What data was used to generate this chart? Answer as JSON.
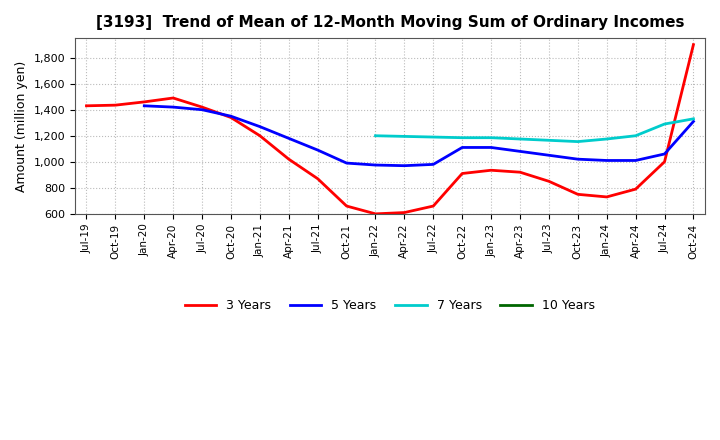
{
  "title": "[3193]  Trend of Mean of 12-Month Moving Sum of Ordinary Incomes",
  "ylabel": "Amount (million yen)",
  "background_color": "#ffffff",
  "grid_color": "#aaaaaa",
  "ylim": [
    600,
    1950
  ],
  "yticks": [
    600,
    800,
    1000,
    1200,
    1400,
    1600,
    1800
  ],
  "series": {
    "3 Years": {
      "color": "#ff0000",
      "dates": [
        "Jul-19",
        "Oct-19",
        "Jan-20",
        "Apr-20",
        "Jul-20",
        "Oct-20",
        "Jan-21",
        "Apr-21",
        "Jul-21",
        "Oct-21",
        "Jan-22",
        "Apr-22",
        "Jul-22",
        "Oct-22",
        "Jan-23",
        "Apr-23",
        "Jul-23",
        "Oct-23",
        "Jan-24",
        "Apr-24",
        "Jul-24",
        "Oct-24"
      ],
      "values": [
        1430,
        1435,
        1460,
        1490,
        1420,
        1340,
        1200,
        1020,
        870,
        660,
        600,
        610,
        660,
        910,
        935,
        920,
        850,
        750,
        730,
        790,
        1000,
        1900
      ]
    },
    "5 Years": {
      "color": "#0000ff",
      "dates": [
        "Jan-20",
        "Apr-20",
        "Jul-20",
        "Oct-20",
        "Jan-21",
        "Apr-21",
        "Jul-21",
        "Oct-21",
        "Jan-22",
        "Apr-22",
        "Jul-22",
        "Oct-22",
        "Jan-23",
        "Apr-23",
        "Jul-23",
        "Oct-23",
        "Jan-24",
        "Apr-24",
        "Jul-24",
        "Oct-24"
      ],
      "values": [
        1430,
        1420,
        1400,
        1350,
        1270,
        1180,
        1090,
        990,
        975,
        970,
        980,
        1110,
        1110,
        1080,
        1050,
        1020,
        1010,
        1010,
        1060,
        1310
      ]
    },
    "7 Years": {
      "color": "#00cccc",
      "dates": [
        "Jan-22",
        "Apr-22",
        "Jul-22",
        "Oct-22",
        "Jan-23",
        "Apr-23",
        "Jul-23",
        "Oct-23",
        "Jan-24",
        "Apr-24",
        "Jul-24",
        "Oct-24"
      ],
      "values": [
        1200,
        1195,
        1190,
        1185,
        1185,
        1175,
        1165,
        1155,
        1175,
        1200,
        1290,
        1330
      ]
    },
    "10 Years": {
      "color": "#006600",
      "dates": [],
      "values": []
    }
  },
  "xtick_labels": [
    "Jul-19",
    "Oct-19",
    "Jan-20",
    "Apr-20",
    "Jul-20",
    "Oct-20",
    "Jan-21",
    "Apr-21",
    "Jul-21",
    "Oct-21",
    "Jan-22",
    "Apr-22",
    "Jul-22",
    "Oct-22",
    "Jan-23",
    "Apr-23",
    "Jul-23",
    "Oct-23",
    "Jan-24",
    "Apr-24",
    "Jul-24",
    "Oct-24"
  ],
  "legend_labels": [
    "3 Years",
    "5 Years",
    "7 Years",
    "10 Years"
  ],
  "legend_colors": [
    "#ff0000",
    "#0000ff",
    "#00cccc",
    "#006600"
  ]
}
